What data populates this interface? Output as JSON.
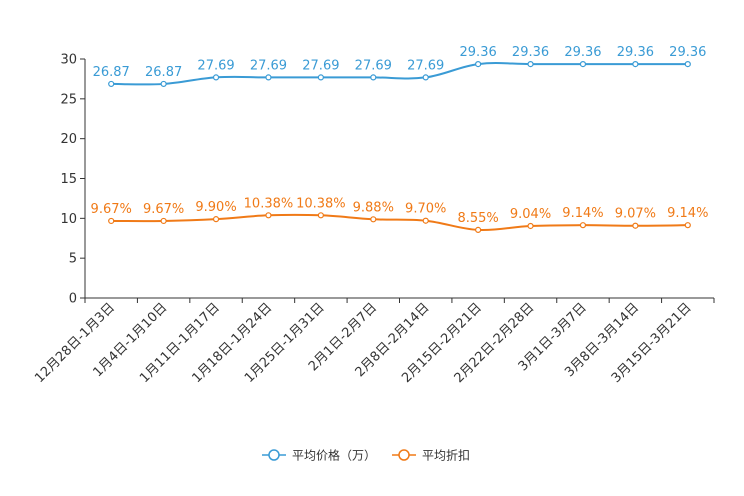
{
  "chart_data": {
    "type": "line",
    "title": "",
    "xlabel": "",
    "ylabel": "",
    "ylim": [
      0,
      30
    ],
    "yticks": [
      0,
      5,
      10,
      15,
      20,
      25,
      30
    ],
    "grid": false,
    "legend_position": "bottom-center",
    "categories": [
      "12月28日-1月3日",
      "1月4日-1月10日",
      "1月11日-1月17日",
      "1月18日-1月24日",
      "1月25日-1月31日",
      "2月1日-2月7日",
      "2月8日-2月14日",
      "2月15日-2月21日",
      "2月22日-2月28日",
      "3月1日-3月7日",
      "3月8日-3月14日",
      "3月15日-3月21日"
    ],
    "series": [
      {
        "name": "平均价格（万）",
        "color": "#3a9bd5",
        "values": [
          26.87,
          26.87,
          27.69,
          27.69,
          27.69,
          27.69,
          27.69,
          29.36,
          29.36,
          29.36,
          29.36,
          29.36
        ],
        "labels": [
          "26.87",
          "26.87",
          "27.69",
          "27.69",
          "27.69",
          "27.69",
          "27.69",
          "29.36",
          "29.36",
          "29.36",
          "29.36",
          "29.36"
        ]
      },
      {
        "name": "平均折扣",
        "color": "#f07a17",
        "values": [
          9.67,
          9.67,
          9.9,
          10.38,
          10.38,
          9.88,
          9.7,
          8.55,
          9.04,
          9.14,
          9.07,
          9.14
        ],
        "labels": [
          "9.67%",
          "9.67%",
          "9.90%",
          "10.38%",
          "10.38%",
          "9.88%",
          "9.70%",
          "8.55%",
          "9.04%",
          "9.14%",
          "9.07%",
          "9.14%"
        ]
      }
    ]
  }
}
